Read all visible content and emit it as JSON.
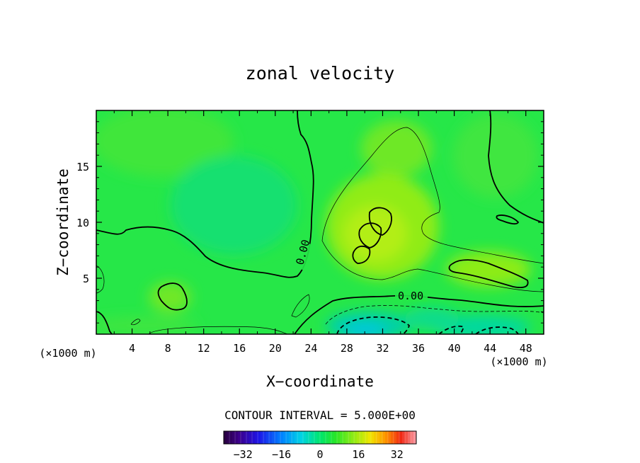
{
  "chart_data": {
    "type": "heatmap",
    "title": "zonal velocity",
    "xlabel": "X−coordinate",
    "ylabel": "Z−coordinate",
    "x_unit": "(×1000 m)",
    "y_unit": "(×1000 m)",
    "xlim": [
      0,
      50
    ],
    "ylim": [
      0,
      20
    ],
    "x_ticks": [
      4,
      8,
      12,
      16,
      20,
      24,
      28,
      32,
      36,
      40,
      44,
      48
    ],
    "y_ticks": [
      5,
      10,
      15
    ],
    "contour_interval_text": "CONTOUR INTERVAL = 5.000E+00",
    "contour_labels": [
      {
        "text": "0.00",
        "x": 23.0,
        "y": 6.5
      },
      {
        "text": "0.00",
        "x": 35.0,
        "y": 3.4
      }
    ],
    "colorbar": {
      "min": -40,
      "max": 40,
      "ticks": [
        -32,
        -16,
        0,
        16,
        32
      ],
      "tick_labels": [
        "−32",
        "−16",
        "0",
        "16",
        "32"
      ]
    },
    "colors": {
      "background": "#ffffff",
      "field_base": "#22e64a",
      "positive_core": "#b8ee10",
      "negative_core": "#00c8e0"
    }
  }
}
